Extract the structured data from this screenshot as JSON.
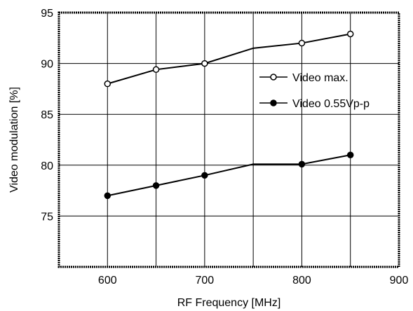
{
  "chart_data": {
    "type": "line",
    "title": "",
    "xlabel": "RF Frequency [MHz]",
    "ylabel": "Video modulation [%]",
    "xlim": [
      550,
      900
    ],
    "ylim": [
      70,
      95
    ],
    "xticks": [
      600,
      700,
      800,
      900
    ],
    "yticks": [
      75,
      80,
      85,
      90,
      95
    ],
    "x_gridlines": [
      600,
      650,
      700,
      750,
      800,
      850
    ],
    "y_gridlines": [
      75,
      80,
      85,
      90
    ],
    "grid": true,
    "legend_position": "right",
    "series": [
      {
        "name": "Video max.",
        "marker": "open-circle",
        "x": [
          600,
          650,
          700,
          750,
          800,
          850
        ],
        "y": [
          88.0,
          89.4,
          90.0,
          91.5,
          92.0,
          92.9
        ],
        "marker_on": [
          true,
          true,
          true,
          false,
          true,
          true
        ]
      },
      {
        "name": "Video 0.55Vp-p",
        "marker": "filled-circle",
        "x": [
          600,
          650,
          700,
          750,
          800,
          850
        ],
        "y": [
          77.0,
          78.0,
          79.0,
          80.1,
          80.1,
          81.0
        ],
        "marker_on": [
          true,
          true,
          true,
          false,
          true,
          true
        ]
      }
    ]
  }
}
